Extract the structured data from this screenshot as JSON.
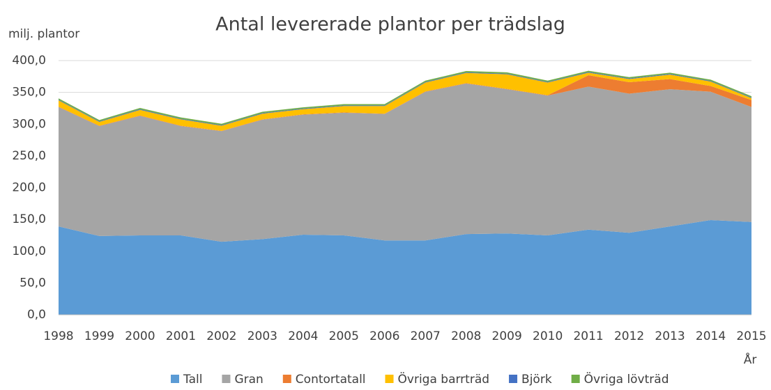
{
  "chart_data": {
    "type": "stacked_area",
    "title": "Antal levererade plantor per trädslag",
    "y_label": "milj. plantor",
    "x_label": "År",
    "categories": [
      "1998",
      "1999",
      "2000",
      "2001",
      "2002",
      "2003",
      "2004",
      "2005",
      "2006",
      "2007",
      "2008",
      "2009",
      "2010",
      "2011",
      "2012",
      "2013",
      "2014",
      "2015"
    ],
    "series": [
      {
        "name": "Tall",
        "color": "#5b9bd5",
        "values": [
          139,
          124,
          125,
          125,
          115,
          119,
          126,
          125,
          117,
          117,
          127,
          128,
          125,
          134,
          129,
          139,
          149,
          146
        ]
      },
      {
        "name": "Gran",
        "color": "#a5a5a5",
        "values": [
          188,
          173,
          188,
          172,
          174,
          188,
          189,
          193,
          199,
          234,
          237,
          227,
          220,
          225,
          219,
          216,
          202,
          181
        ]
      },
      {
        "name": "Contortatall",
        "color": "#ed7d31",
        "values": [
          0.5,
          0.5,
          0.5,
          0.5,
          0.5,
          0.5,
          0.5,
          0.5,
          0.5,
          0.5,
          0.5,
          0.5,
          0.5,
          18,
          18,
          16,
          9,
          11
        ]
      },
      {
        "name": "Övriga barrträd",
        "color": "#ffc000",
        "values": [
          10,
          6,
          9,
          10,
          8,
          9,
          8,
          10,
          12,
          14,
          16,
          23,
          20,
          4,
          5,
          7,
          7,
          3
        ]
      },
      {
        "name": "Björk",
        "color": "#4472c4",
        "values": [
          1,
          1,
          1,
          1,
          1,
          1,
          1,
          1,
          1,
          1,
          1,
          1,
          1,
          1,
          1,
          1,
          1,
          1
        ]
      },
      {
        "name": "Övriga lövträd",
        "color": "#70ad47",
        "values": [
          2,
          2,
          2,
          2,
          2,
          2,
          2,
          2,
          2,
          2,
          2,
          2,
          2,
          2,
          2,
          2,
          2,
          2
        ]
      }
    ],
    "ylim": [
      0,
      400
    ],
    "yticks": [
      {
        "value": 0,
        "label": "0,0"
      },
      {
        "value": 50,
        "label": "50,0"
      },
      {
        "value": 100,
        "label": "100,0"
      },
      {
        "value": 150,
        "label": "150,0"
      },
      {
        "value": 200,
        "label": "200,0"
      },
      {
        "value": 250,
        "label": "250,0"
      },
      {
        "value": 300,
        "label": "300,0"
      },
      {
        "value": 350,
        "label": "350,0"
      },
      {
        "value": 400,
        "label": "400,0"
      }
    ],
    "grid": true,
    "legend": "bottom"
  }
}
